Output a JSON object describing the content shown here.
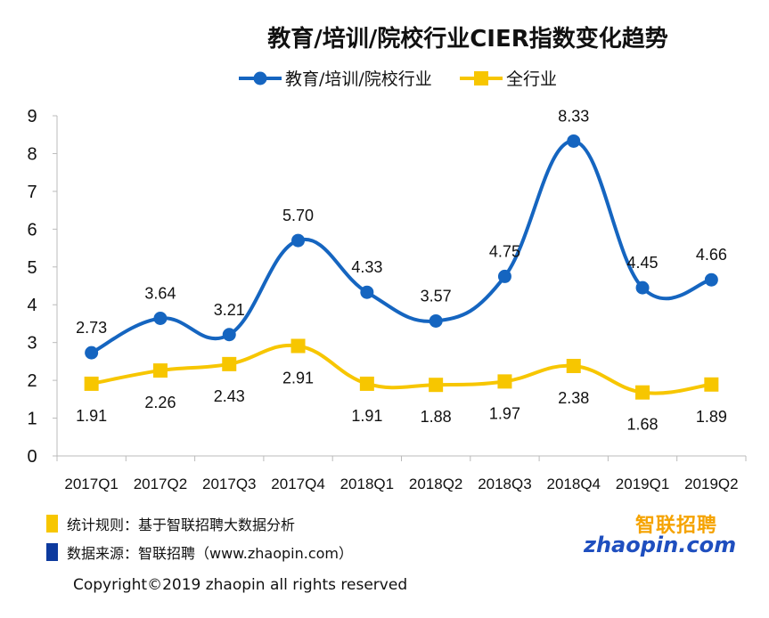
{
  "chart_data": {
    "type": "line",
    "title": "教育/培训/院校行业CIER指数变化趋势",
    "categories": [
      "2017Q1",
      "2017Q2",
      "2017Q3",
      "2017Q4",
      "2018Q1",
      "2018Q2",
      "2018Q3",
      "2018Q4",
      "2019Q1",
      "2019Q2"
    ],
    "series": [
      {
        "name": "教育/培训/院校行业",
        "color": "#1565c0",
        "marker": "circle",
        "values": [
          2.73,
          3.64,
          3.21,
          5.7,
          4.33,
          3.57,
          4.75,
          8.33,
          4.45,
          4.66
        ],
        "labels": [
          "2.73",
          "3.64",
          "3.21",
          "5.70",
          "4.33",
          "3.57",
          "4.75",
          "8.33",
          "4.45",
          "4.66"
        ]
      },
      {
        "name": "全行业",
        "color": "#f7c600",
        "marker": "square",
        "values": [
          1.91,
          2.26,
          2.43,
          2.91,
          1.91,
          1.88,
          1.97,
          2.38,
          1.68,
          1.89
        ],
        "labels": [
          "1.91",
          "2.26",
          "2.43",
          "2.91",
          "1.91",
          "1.88",
          "1.97",
          "2.38",
          "1.68",
          "1.89"
        ]
      }
    ],
    "ylim": [
      0,
      9
    ],
    "yticks": [
      "0",
      "1",
      "2",
      "3",
      "4",
      "5",
      "6",
      "7",
      "8",
      "9"
    ],
    "legend_position": "top",
    "grid": false
  },
  "footer": {
    "rule_text": "统计规则：基于智联招聘大数据分析",
    "rule_color": "#f7c600",
    "source_text": "数据来源：智联招聘（www.zhaopin.com）",
    "source_color": "#0d3a9e",
    "copyright": "Copyright©2019 zhaopin all rights reserved"
  },
  "logo": {
    "cn": "智联招聘",
    "en": "zhaopin.com"
  }
}
